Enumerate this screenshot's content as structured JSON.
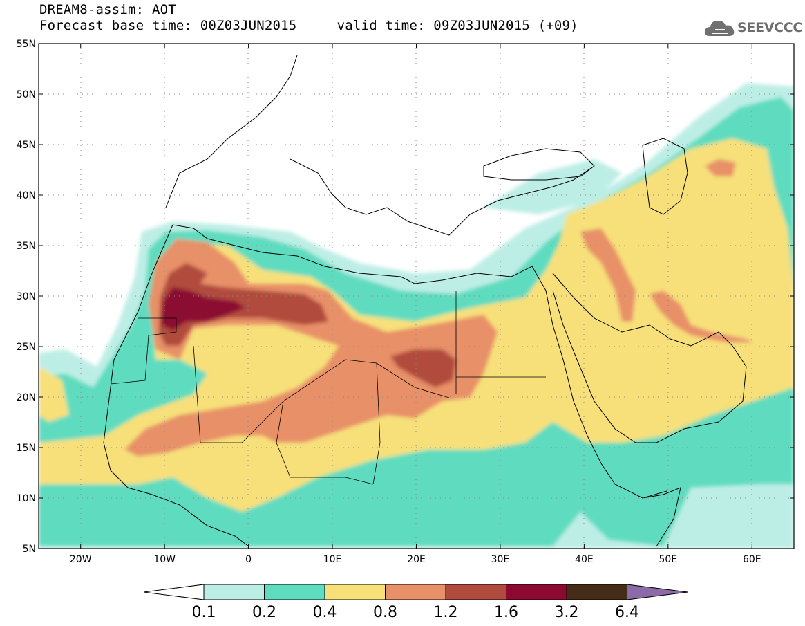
{
  "header": {
    "title": "DREAM8-assim: AOT",
    "subtitle": "Forecast base time: 00Z03JUN2015     valid time: 09Z03JUN2015 (+09)"
  },
  "logo": {
    "text": "SEEVCCC",
    "icon": "cloud-icon",
    "color": "#6e6e6e"
  },
  "map": {
    "lon_range": [
      -25,
      65
    ],
    "lat_range": [
      5,
      55
    ],
    "grid": "dotted",
    "lat_ticks": [
      {
        "value": 55,
        "label": "55N"
      },
      {
        "value": 50,
        "label": "50N"
      },
      {
        "value": 45,
        "label": "45N"
      },
      {
        "value": 40,
        "label": "40N"
      },
      {
        "value": 35,
        "label": "35N"
      },
      {
        "value": 30,
        "label": "30N"
      },
      {
        "value": 25,
        "label": "25N"
      },
      {
        "value": 20,
        "label": "20N"
      },
      {
        "value": 15,
        "label": "15N"
      },
      {
        "value": 10,
        "label": "10N"
      },
      {
        "value": 5,
        "label": "5N"
      }
    ],
    "lon_ticks": [
      {
        "value": -20,
        "label": "20W"
      },
      {
        "value": -10,
        "label": "10W"
      },
      {
        "value": 0,
        "label": "0"
      },
      {
        "value": 10,
        "label": "10E"
      },
      {
        "value": 20,
        "label": "20E"
      },
      {
        "value": 30,
        "label": "30E"
      },
      {
        "value": 40,
        "label": "40E"
      },
      {
        "value": 50,
        "label": "50E"
      },
      {
        "value": 60,
        "label": "60E"
      }
    ]
  },
  "colorbar": {
    "levels": [
      "0.1",
      "0.2",
      "0.4",
      "0.8",
      "1.2",
      "1.6",
      "3.2",
      "6.4"
    ],
    "colors": [
      "#ffffff",
      "#bdeee6",
      "#5fdcbf",
      "#f7e07a",
      "#e89068",
      "#b04c3e",
      "#8c0a32",
      "#452c18",
      "#8c6aa8"
    ]
  }
}
